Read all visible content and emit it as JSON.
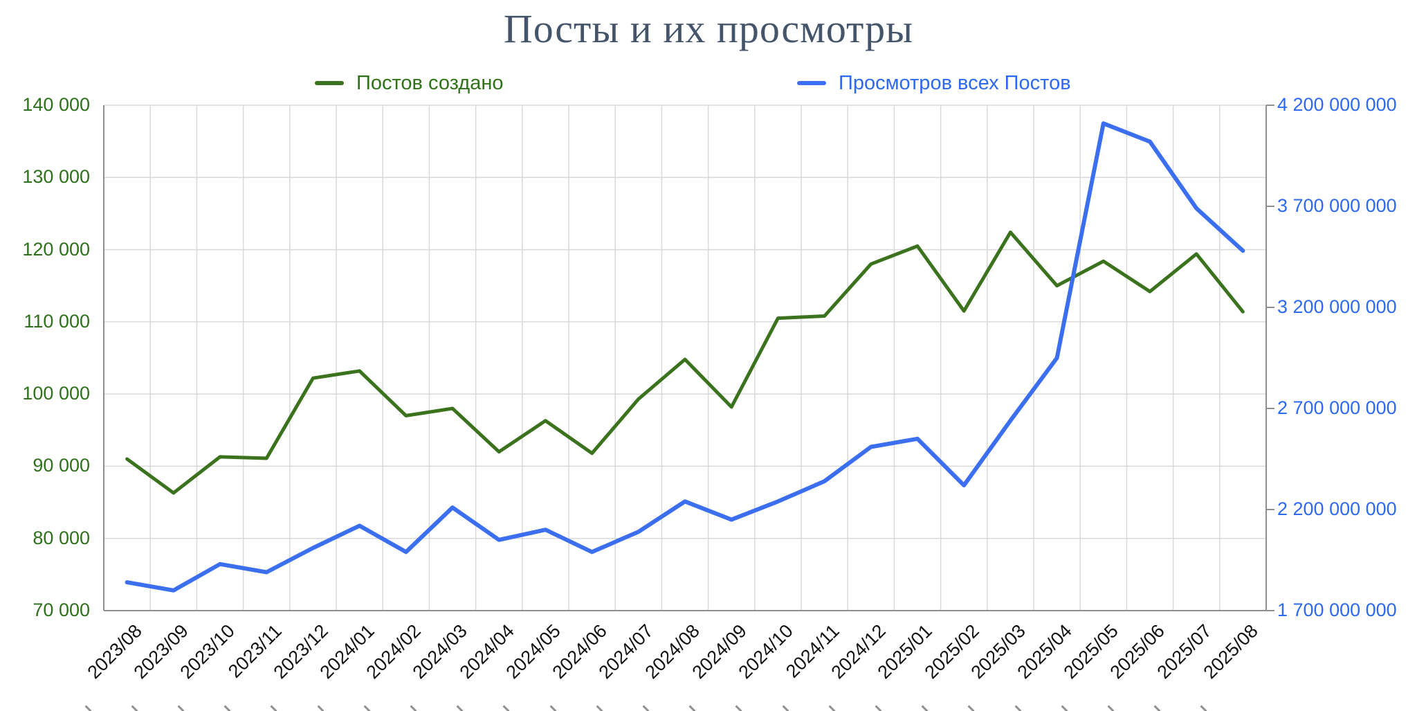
{
  "title": "Посты и их просмотры",
  "legend": [
    {
      "label": "Постов создано",
      "color": "#3b721d"
    },
    {
      "label": "Просмотров всех Постов",
      "color": "#3b6ff0"
    }
  ],
  "chart_data": {
    "type": "line",
    "title": "Посты и их просмотры",
    "categories": [
      "2023/08",
      "2023/09",
      "2023/10",
      "2023/11",
      "2023/12",
      "2024/01",
      "2024/02",
      "2024/03",
      "2024/04",
      "2024/05",
      "2024/06",
      "2024/07",
      "2024/08",
      "2024/09",
      "2024/10",
      "2024/11",
      "2024/12",
      "2025/01",
      "2025/02",
      "2025/03",
      "2025/04",
      "2025/05",
      "2025/06",
      "2025/07",
      "2025/08"
    ],
    "series": [
      {
        "name": "Постов создано",
        "axis": "left",
        "color": "#3b721d",
        "stroke_width": 5,
        "values": [
          91000,
          86300,
          91300,
          91100,
          102200,
          103200,
          97000,
          98000,
          92000,
          96300,
          91800,
          99300,
          104800,
          98200,
          110500,
          110800,
          118000,
          120500,
          111500,
          122400,
          115000,
          118400,
          114200,
          119400,
          111400
        ]
      },
      {
        "name": "Просмотров всех Постов",
        "axis": "right",
        "color": "#3b6ff0",
        "stroke_width": 6,
        "values": [
          1840000000,
          1800000000,
          1930000000,
          1890000000,
          2010000000,
          2120000000,
          1990000000,
          2210000000,
          2050000000,
          2100000000,
          1990000000,
          2090000000,
          2240000000,
          2150000000,
          2240000000,
          2340000000,
          2510000000,
          2550000000,
          2320000000,
          2640000000,
          2950000000,
          4110000000,
          4020000000,
          3690000000,
          3480000000
        ]
      }
    ],
    "left_axis": {
      "min": 70000,
      "max": 140000,
      "step": 10000,
      "color": "#2e701c",
      "tick_labels": [
        "140 000",
        "130 000",
        "120 000",
        "110 000",
        "100 000",
        "90 000",
        "80 000",
        "70 000"
      ]
    },
    "right_axis": {
      "min": 1700000000,
      "max": 4200000000,
      "step": 500000000,
      "color": "#2d69f1",
      "tick_labels": [
        "4 200 000 000",
        "3 700 000 000",
        "3 200 000 000",
        "2 700 000 000",
        "2 200 000 000",
        "1 700 000 000"
      ]
    },
    "grid": true,
    "legend_position": "top",
    "colors": {
      "gridline": "#d9d9d9",
      "axis_line": "#8f8f8f",
      "x_label": "#111111"
    }
  }
}
